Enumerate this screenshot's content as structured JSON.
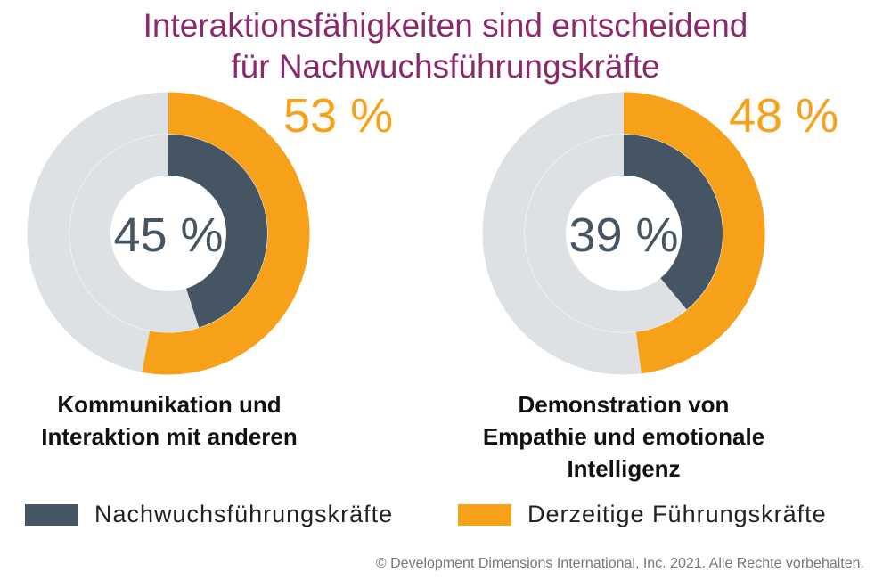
{
  "title_line1": "Interaktionsfähigkeiten sind entscheidend",
  "title_line2": "für Nachwuchsführungskräfte",
  "colors": {
    "title": "#8b2a6b",
    "nachwuchs": "#455563",
    "derzeitige": "#f7a11a",
    "track": "#dde1e4"
  },
  "chart_data": [
    {
      "type": "donut",
      "category": "Kommunikation und Interaktion mit anderen",
      "caption_lines": [
        "Kommunikation und",
        "Interaktion mit anderen"
      ],
      "series": [
        {
          "name": "Nachwuchsführungskräfte",
          "value": 45,
          "label": "45 %",
          "ring": "inner"
        },
        {
          "name": "Derzeitige Führungskräfte",
          "value": 53,
          "label": "53 %",
          "ring": "outer"
        }
      ]
    },
    {
      "type": "donut",
      "category": "Demonstration von Empathie und emotionale Intelligenz",
      "caption_lines": [
        "Demonstration von",
        "Empathie und emotionale",
        "Intelligenz"
      ],
      "series": [
        {
          "name": "Nachwuchsführungskräfte",
          "value": 39,
          "label": "39 %",
          "ring": "inner"
        },
        {
          "name": "Derzeitige Führungskräfte",
          "value": 48,
          "label": "48 %",
          "ring": "outer"
        }
      ]
    }
  ],
  "legend": [
    {
      "label": "Nachwuchsführungskräfte",
      "color": "#455563"
    },
    {
      "label": "Derzeitige Führungskräfte",
      "color": "#f7a11a"
    }
  ],
  "credit": "© Development Dimensions International, Inc. 2021. Alle Rechte vorbehalten."
}
